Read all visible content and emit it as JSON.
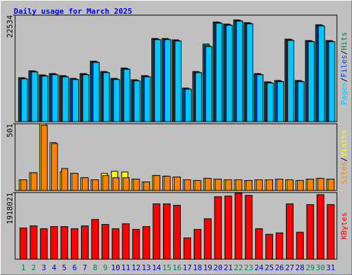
{
  "chart_data": [
    {
      "type": "bar",
      "title": "Daily usage for March 2025",
      "ylim": [
        0,
        22534
      ],
      "yticks": [
        22534
      ],
      "legend_separator": "/",
      "series": [
        {
          "name": "Hits",
          "color": "#00805c",
          "values": [
            9300,
            10760,
            9890,
            10180,
            9740,
            9160,
            10180,
            12790,
            10610,
            9160,
            11340,
            8870,
            9740,
            17590,
            17590,
            17300,
            7120,
            10610,
            16430,
            21080,
            20650,
            21520,
            20940,
            10180,
            8430,
            8720,
            17450,
            8720,
            17160,
            20500,
            17160
          ]
        },
        {
          "name": "Files",
          "color": "#0040ff",
          "values": [
            9150,
            10610,
            9740,
            10030,
            9590,
            9010,
            10030,
            12640,
            10460,
            9010,
            11190,
            8720,
            9590,
            17440,
            17440,
            17150,
            6970,
            10460,
            15990,
            20930,
            20500,
            21370,
            20790,
            10030,
            8280,
            8570,
            17300,
            8570,
            17010,
            20350,
            17010
          ]
        },
        {
          "name": "Pages",
          "color": "#00c8ff",
          "values": [
            9050,
            10510,
            9640,
            9930,
            9490,
            8910,
            9930,
            12540,
            10360,
            8910,
            11090,
            8620,
            9490,
            17340,
            17340,
            17050,
            6870,
            10360,
            15890,
            20830,
            20400,
            21270,
            20690,
            9930,
            8180,
            8470,
            17200,
            8470,
            16910,
            20250,
            16910
          ]
        }
      ]
    },
    {
      "type": "bar",
      "ylim": [
        0,
        501
      ],
      "yticks": [
        501
      ],
      "legend_separator": "/",
      "series": [
        {
          "name": "Visits",
          "color": "#ffff00",
          "values": [
            80,
            133,
            501,
            360,
            139,
            128,
            96,
            80,
            128,
            144,
            139,
            85,
            64,
            112,
            107,
            101,
            80,
            75,
            91,
            85,
            80,
            80,
            75,
            80,
            80,
            85,
            80,
            75,
            85,
            91,
            85
          ]
        },
        {
          "name": "Sites",
          "color": "#ff8000",
          "values": [
            80,
            133,
            490,
            352,
            165,
            128,
            96,
            80,
            112,
            96,
            96,
            85,
            64,
            112,
            107,
            101,
            80,
            75,
            91,
            85,
            80,
            80,
            75,
            80,
            80,
            85,
            80,
            75,
            85,
            91,
            85
          ]
        }
      ]
    },
    {
      "type": "bar",
      "ylim": [
        0,
        1918021
      ],
      "yticks": [
        1918021
      ],
      "categories": [
        "1",
        "2",
        "3",
        "4",
        "5",
        "6",
        "7",
        "8",
        "9",
        "10",
        "11",
        "12",
        "13",
        "14",
        "15",
        "16",
        "17",
        "18",
        "19",
        "20",
        "21",
        "22",
        "23",
        "24",
        "25",
        "26",
        "27",
        "28",
        "29",
        "30",
        "31"
      ],
      "category_color": "#0000cc",
      "highlighted_categories": [
        "1",
        "2",
        "8",
        "9",
        "15",
        "16",
        "22",
        "23",
        "29",
        "30"
      ],
      "highlight_color": "#00805c",
      "series": [
        {
          "name": "KBytes",
          "color": "#ff0000",
          "values": [
            898000,
            959000,
            877000,
            939000,
            939000,
            877000,
            959000,
            1143000,
            1000000,
            877000,
            1020000,
            857000,
            939000,
            1592000,
            1592000,
            1551000,
            612000,
            857000,
            1163000,
            1796000,
            1816000,
            1898000,
            1836000,
            877000,
            714000,
            755000,
            1592000,
            775000,
            1571000,
            1857000,
            1571000
          ]
        }
      ]
    }
  ]
}
